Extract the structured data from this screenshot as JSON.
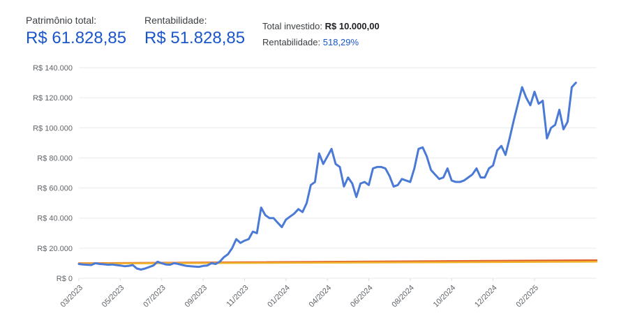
{
  "summary": {
    "total_label": "Patrimônio total:",
    "total_value": "R$ 61.828,85",
    "rent_label": "Rentabilidade:",
    "rent_value": "R$ 51.828,85",
    "invested_label": "Total investido:",
    "invested_value": "R$ 10.000,00",
    "pct_label": "Rentabilidade:",
    "pct_value": "518,29%"
  },
  "chart_data": {
    "type": "line",
    "ylim": [
      0,
      140000
    ],
    "yticks": [
      0,
      20000,
      40000,
      60000,
      80000,
      100000,
      120000,
      140000
    ],
    "ytick_labels": [
      "R$ 0",
      "R$ 20.000",
      "R$ 40.000",
      "R$ 60.000",
      "R$ 80.000",
      "R$ 100.000",
      "R$ 120.000",
      "R$ 140.000"
    ],
    "xtick_labels": [
      "03/2023",
      "05/2023",
      "07/2023",
      "09/2023",
      "11/2023",
      "01/2024",
      "04/2024",
      "06/2024",
      "08/2024",
      "10/2024",
      "12/2024",
      "02/2025"
    ],
    "grid": true,
    "series": [
      {
        "color": "#4a7ad6",
        "x": [
          0,
          0.1,
          0.2,
          0.3,
          0.4,
          0.5,
          0.6,
          0.7,
          0.8,
          0.9,
          1.0,
          1.1,
          1.2,
          1.3,
          1.4,
          1.5,
          1.6,
          1.7,
          1.8,
          1.9,
          2.0,
          2.1,
          2.2,
          2.3,
          2.4,
          2.5,
          2.6,
          2.7,
          2.8,
          2.9,
          3.0,
          3.1,
          3.2,
          3.3,
          3.4,
          3.5,
          3.6,
          3.7,
          3.8,
          3.9,
          4.0,
          4.1,
          4.2,
          4.3,
          4.4,
          4.5,
          4.6,
          4.7,
          4.8,
          4.9,
          5.0,
          5.1,
          5.2,
          5.3,
          5.4,
          5.5,
          5.6,
          5.7,
          5.8,
          5.9,
          6.0,
          6.1,
          6.2,
          6.3,
          6.4,
          6.5,
          6.6,
          6.7,
          6.8,
          6.9,
          7.0,
          7.1,
          7.2,
          7.3,
          7.4,
          7.5,
          7.6,
          7.7,
          7.8,
          7.9,
          8.0,
          8.1,
          8.2,
          8.3,
          8.4,
          8.5,
          8.6,
          8.7,
          8.8,
          8.9,
          9.0,
          9.1,
          9.2,
          9.3,
          9.4,
          9.5,
          9.6,
          9.7,
          9.8,
          9.9,
          10.0,
          10.1,
          10.2,
          10.3,
          10.4,
          10.5,
          10.6,
          10.7,
          10.8,
          10.9,
          11.0,
          11.1,
          11.2,
          11.3,
          11.4,
          11.5,
          11.6,
          11.7,
          11.8,
          11.9,
          12.0
        ],
        "values": [
          9500,
          9200,
          9000,
          8800,
          10000,
          9500,
          9300,
          9000,
          9200,
          8800,
          8500,
          8000,
          8200,
          8800,
          6500,
          5800,
          6500,
          7500,
          8500,
          11000,
          10000,
          9200,
          9000,
          10000,
          9500,
          8800,
          8200,
          8000,
          7800,
          7600,
          8200,
          8500,
          10000,
          9500,
          11000,
          14000,
          16000,
          20000,
          26000,
          23500,
          25000,
          26000,
          31000,
          30000,
          47000,
          42000,
          40000,
          40000,
          37000,
          34000,
          39000,
          41000,
          43000,
          46000,
          44000,
          50000,
          62000,
          64000,
          83000,
          76000,
          81000,
          86000,
          76000,
          74000,
          61000,
          67000,
          63000,
          54000,
          63000,
          64000,
          62000,
          73000,
          74000,
          74000,
          73000,
          68000,
          61000,
          62000,
          66000,
          65000,
          64000,
          73000,
          86000,
          87000,
          81000,
          72000,
          69000,
          66000,
          67000,
          73000,
          65000,
          64000,
          64000,
          65000,
          67000,
          69000,
          73000,
          67000,
          67000,
          73000,
          75000,
          85000,
          88000,
          82000,
          93000,
          105000,
          116000,
          127000,
          120000,
          115000,
          124000,
          116000,
          118000,
          93000,
          100000,
          102000,
          112000,
          99000,
          104000,
          127000,
          130000
        ],
        "note": "values clipped to visible range"
      },
      {
        "color": "#e0612b",
        "x": [
          0,
          12.5
        ],
        "values": [
          10000,
          12000
        ]
      },
      {
        "color": "#f0b22a",
        "x": [
          0,
          12.5
        ],
        "values": [
          9800,
          11000
        ]
      }
    ]
  }
}
